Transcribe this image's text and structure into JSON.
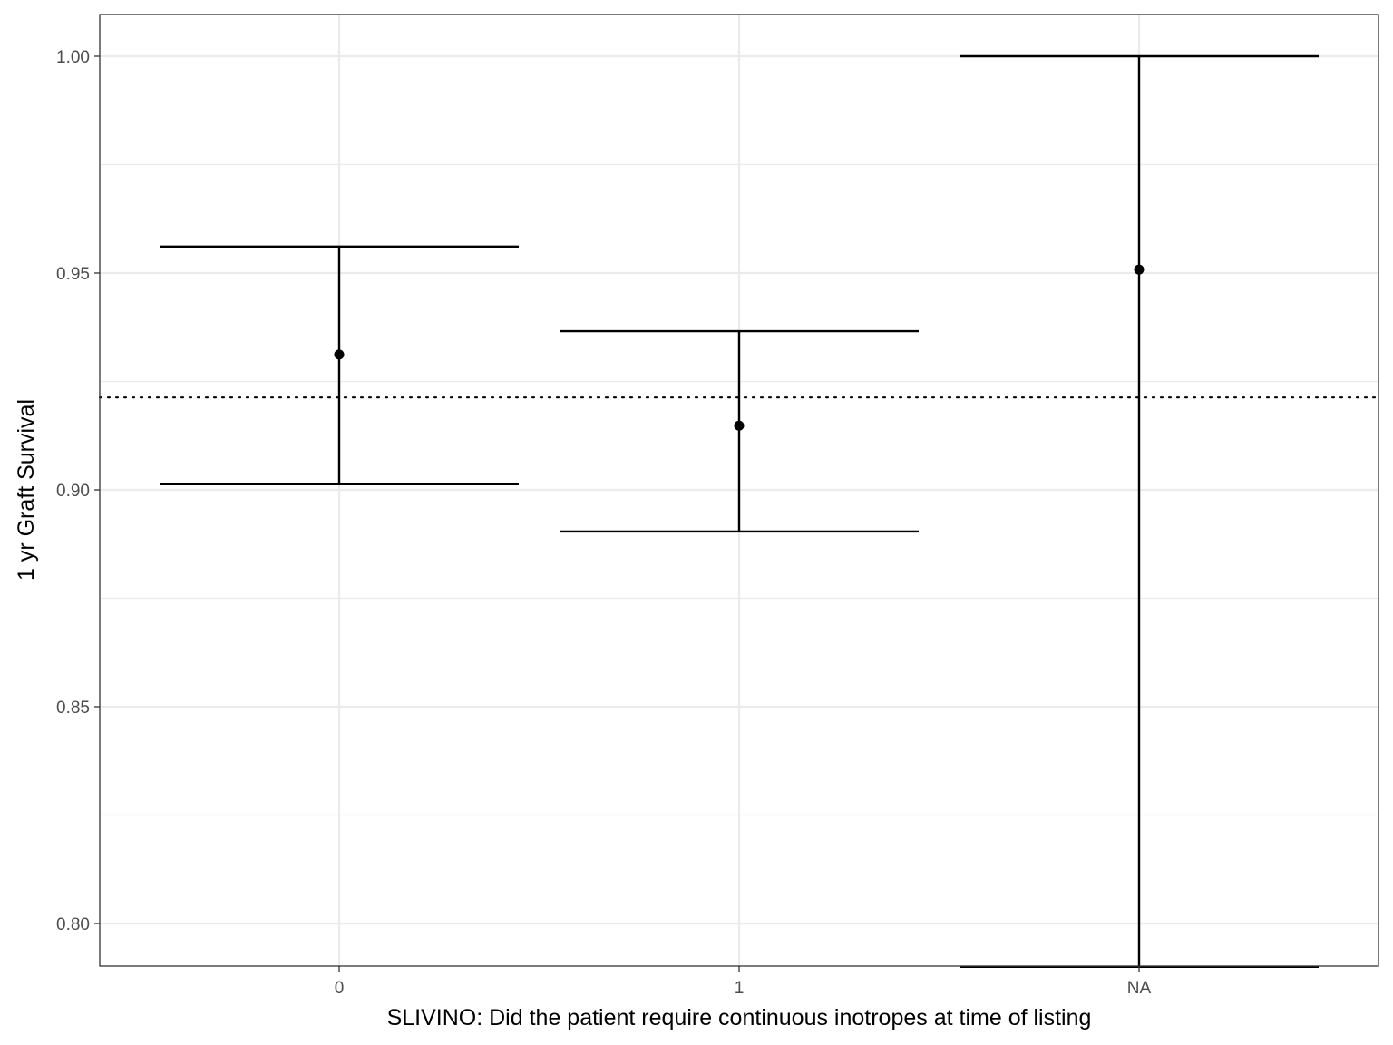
{
  "chart_data": {
    "type": "errorbar",
    "xlabel": "SLIVINO: Did the patient require continuous inotropes at time of listing",
    "ylabel": "1 yr Graft Survival",
    "categories": [
      "0",
      "1",
      "NA"
    ],
    "estimates": [
      0.9312,
      0.9148,
      0.9508
    ],
    "lower": [
      0.9013,
      0.8904,
      0.79
    ],
    "upper": [
      0.9561,
      0.9366,
      1.0
    ],
    "reference_line": {
      "value": 0.9213,
      "style": "dotted"
    },
    "ylim": [
      0.79,
      1.01
    ],
    "yticks": [
      0.8,
      0.85,
      0.9,
      0.95,
      1.0
    ],
    "ytick_labels": [
      "0.80",
      "0.85",
      "0.90",
      "0.95",
      "1.00"
    ],
    "grid": true,
    "colors": {
      "grid": "#ebebeb",
      "marks": "#000000",
      "panel_border": "#333333"
    }
  }
}
